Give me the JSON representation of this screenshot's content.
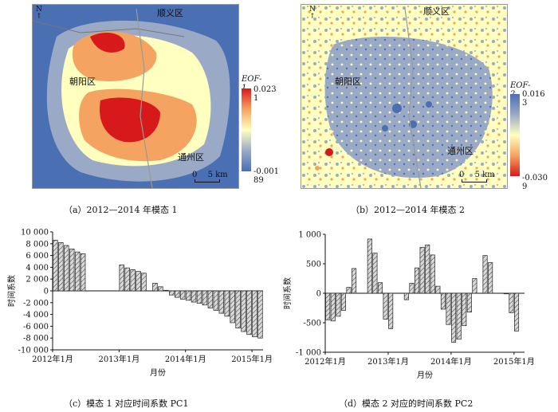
{
  "map_a": {
    "caption": "（a）2012—2014 年模态 1",
    "north_label": "N",
    "labels": {
      "shunyi": "顺义区",
      "chaoyang": "朝阳区",
      "tongzhou": "通州区"
    },
    "scale": {
      "zero": "0",
      "dist": "5 km"
    },
    "colorbar": {
      "title": "EOF-1",
      "max": "0.023 1",
      "min": "-0.001 89",
      "colors": [
        "#d7191c",
        "#f4a460",
        "#ffffbf",
        "#9aaac6",
        "#4a6fb3"
      ]
    }
  },
  "map_b": {
    "caption": "（b）2012—2014 年模态 2",
    "north_label": "N",
    "labels": {
      "shunyi": "顺义区",
      "chaoyang": "朝阳区",
      "tongzhou": "通州区"
    },
    "scale": {
      "zero": "0",
      "dist": "5 km"
    },
    "colorbar": {
      "title": "EOF-2",
      "max": "0.016 3",
      "min": "-0.030 9",
      "colors": [
        "#4a6fb3",
        "#9aaac6",
        "#ffffbf",
        "#f4a460",
        "#d7191c"
      ]
    }
  },
  "chart_data": [
    {
      "type": "bar",
      "caption": "（c）模态 1 对应时间系数 PC1",
      "xlabel": "月份",
      "ylabel": "时间系数",
      "ylim": [
        -10000,
        10000
      ],
      "yticks": [
        10000,
        8000,
        6000,
        4000,
        2000,
        0,
        -2000,
        -4000,
        -6000,
        -8000,
        -10000
      ],
      "ytick_labels": [
        "10 000",
        "8 000",
        "6 000",
        "4 000",
        "2 000",
        "0",
        "-2 000",
        "-4 000",
        "-6 000",
        "-8 000",
        "-10 000"
      ],
      "xtick_labels": [
        "2012年1月",
        "2013年1月",
        "2014年1月",
        "2015年1月"
      ],
      "n_months": 38,
      "values": [
        8600,
        8200,
        7700,
        7100,
        6600,
        6300,
        null,
        null,
        null,
        null,
        null,
        null,
        4400,
        3900,
        3600,
        3300,
        3000,
        null,
        1300,
        700,
        100,
        -700,
        -1100,
        -1400,
        -1600,
        -1900,
        -2100,
        -2400,
        -2900,
        -3300,
        -3800,
        -4300,
        -5400,
        -6300,
        -6900,
        -7400,
        -7800,
        -8000
      ]
    },
    {
      "type": "bar",
      "caption": "（d）模态 2 对应的时间系数 PC2",
      "xlabel": "月份",
      "ylabel": "时间系数",
      "ylim": [
        -1000,
        1000
      ],
      "yticks": [
        1000,
        500,
        0,
        -500,
        -1000
      ],
      "ytick_labels": [
        "1 000",
        "500",
        "0",
        "-500",
        "-1 000"
      ],
      "xtick_labels": [
        "2012年1月",
        "2013年1月",
        "2014年1月",
        "2015年1月"
      ],
      "n_months": 38,
      "values": [
        -450,
        -470,
        -390,
        -290,
        100,
        420,
        null,
        null,
        920,
        680,
        180,
        -440,
        -600,
        null,
        null,
        -110,
        170,
        430,
        780,
        820,
        650,
        120,
        -270,
        -530,
        -830,
        -780,
        -550,
        -320,
        250,
        null,
        640,
        520,
        null,
        null,
        -10,
        -330,
        -640,
        null
      ]
    }
  ]
}
